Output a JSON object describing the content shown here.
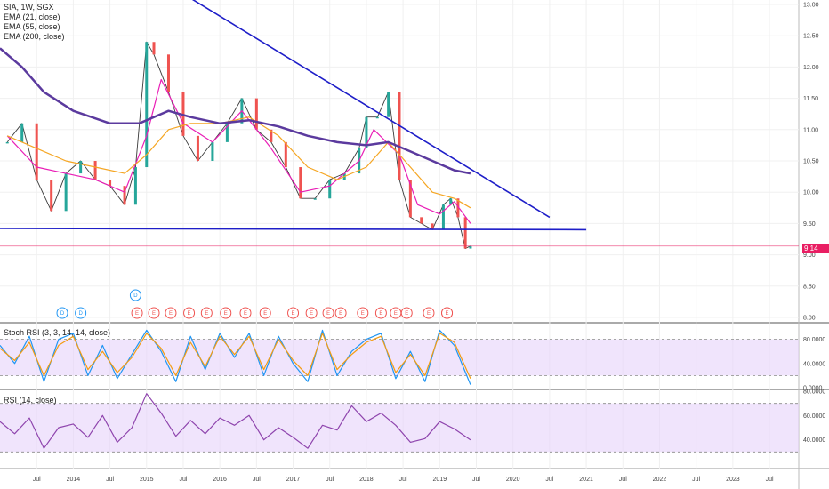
{
  "header": {
    "symbol_line": "SIA, 1W, SGX",
    "indicators": [
      "EMA (21, close)",
      "EMA (55, close)",
      "EMA (200, close)"
    ]
  },
  "last_price_label": "9.14",
  "colors": {
    "up_candle": "#26a69a",
    "down_candle": "#ef5350",
    "ema21": "#e91eb6",
    "ema55": "#f5a623",
    "ema200": "#5b3a9e",
    "trendline": "#1e1ec8",
    "stoch_k": "#2196f3",
    "stoch_d": "#f39c12",
    "rsi": "#8e44ad",
    "band": "#e6d2fa",
    "last_price_line": "#e91e63"
  },
  "chart_data": [
    {
      "type": "line",
      "title": "SIA, 1W, SGX",
      "ylim": [
        8.0,
        13.0
      ],
      "y_ticks": [
        "8.00",
        "8.50",
        "9.00",
        "9.50",
        "10.00",
        "10.50",
        "11.00",
        "11.50",
        "12.00",
        "12.50",
        "13.00"
      ],
      "x_ticks": [
        "Jul",
        "2014",
        "Jul",
        "2015",
        "Jul",
        "2016",
        "Jul",
        "2017",
        "Jul",
        "2018",
        "Jul",
        "2019",
        "Jul",
        "2020",
        "Jul",
        "2021",
        "Jul",
        "2022",
        "Jul",
        "2023",
        "Jul"
      ],
      "x_tick_dates": [
        2013.5,
        2014,
        2014.5,
        2015,
        2015.5,
        2016,
        2016.5,
        2017,
        2017.5,
        2018,
        2018.5,
        2019,
        2019.5,
        2020,
        2020.5,
        2021,
        2021.5,
        2022,
        2022.5,
        2023,
        2023.5
      ],
      "series": [
        {
          "name": "Price",
          "x": [
            2013.1,
            2013.3,
            2013.5,
            2013.7,
            2013.9,
            2014.1,
            2014.3,
            2014.5,
            2014.7,
            2014.85,
            2015.0,
            2015.1,
            2015.3,
            2015.5,
            2015.7,
            2015.9,
            2016.1,
            2016.3,
            2016.5,
            2016.7,
            2016.9,
            2017.1,
            2017.3,
            2017.5,
            2017.7,
            2017.9,
            2018.0,
            2018.15,
            2018.3,
            2018.45,
            2018.6,
            2018.75,
            2018.9,
            2019.05,
            2019.15,
            2019.25,
            2019.35,
            2019.42
          ],
          "values": [
            10.8,
            11.1,
            10.2,
            9.7,
            10.3,
            10.5,
            10.2,
            10.1,
            9.8,
            10.4,
            12.4,
            12.2,
            11.6,
            10.9,
            10.5,
            10.8,
            11.1,
            11.5,
            11.0,
            10.8,
            10.4,
            9.9,
            9.9,
            10.2,
            10.3,
            10.7,
            11.2,
            11.2,
            11.6,
            10.2,
            9.6,
            9.5,
            9.4,
            9.8,
            9.9,
            9.6,
            9.1,
            9.14
          ]
        },
        {
          "name": "EMA (21, close)",
          "x": [
            2013.1,
            2013.5,
            2013.9,
            2014.3,
            2014.7,
            2015.0,
            2015.2,
            2015.5,
            2015.9,
            2016.3,
            2016.7,
            2017.1,
            2017.5,
            2017.9,
            2018.1,
            2018.45,
            2018.7,
            2019.0,
            2019.2,
            2019.42
          ],
          "values": [
            10.9,
            10.4,
            10.3,
            10.2,
            10.0,
            10.9,
            11.8,
            11.1,
            10.8,
            11.3,
            10.7,
            10.0,
            10.1,
            10.5,
            11.0,
            10.6,
            9.8,
            9.65,
            9.85,
            9.5
          ]
        },
        {
          "name": "EMA (55, close)",
          "x": [
            2013.1,
            2013.5,
            2013.9,
            2014.3,
            2014.7,
            2015.0,
            2015.3,
            2015.6,
            2016.0,
            2016.4,
            2016.8,
            2017.2,
            2017.6,
            2018.0,
            2018.3,
            2018.6,
            2018.9,
            2019.2,
            2019.42
          ],
          "values": [
            10.9,
            10.7,
            10.5,
            10.4,
            10.3,
            10.6,
            11.0,
            11.1,
            11.1,
            11.2,
            10.9,
            10.4,
            10.2,
            10.4,
            10.8,
            10.4,
            10.0,
            9.9,
            9.75
          ]
        },
        {
          "name": "EMA (200, close)",
          "x": [
            2013.0,
            2013.3,
            2013.6,
            2014.0,
            2014.5,
            2014.9,
            2015.3,
            2015.6,
            2016.0,
            2016.4,
            2016.8,
            2017.2,
            2017.6,
            2018.0,
            2018.3,
            2018.6,
            2018.9,
            2019.2,
            2019.42
          ],
          "values": [
            12.3,
            12.0,
            11.6,
            11.3,
            11.1,
            11.1,
            11.3,
            11.2,
            11.1,
            11.15,
            11.05,
            10.9,
            10.8,
            10.75,
            10.8,
            10.65,
            10.5,
            10.35,
            10.3
          ]
        },
        {
          "name": "Descending trendline",
          "x": [
            2015.6,
            2020.5
          ],
          "values": [
            13.1,
            9.6
          ]
        },
        {
          "name": "Support line",
          "x": [
            2013.0,
            2021.0
          ],
          "values": [
            9.42,
            9.4
          ]
        }
      ],
      "markers": {
        "labels": [
          "D",
          "D",
          "D",
          "E",
          "E",
          "E",
          "E",
          "E",
          "E",
          "E",
          "E",
          "E",
          "E",
          "E",
          "E",
          "E",
          "E",
          "E",
          "E",
          "E",
          "E",
          "E"
        ],
        "x": [
          2013.85,
          2014.1,
          2014.85,
          2014.87,
          2015.1,
          2015.33,
          2015.58,
          2015.82,
          2016.08,
          2016.35,
          2016.62,
          2017.0,
          2017.25,
          2017.48,
          2017.65,
          2017.95,
          2018.2,
          2018.4,
          2018.55,
          2018.85,
          2019.1,
          2019.1
        ],
        "rows": [
          1,
          1,
          0,
          1,
          1,
          1,
          1,
          1,
          1,
          1,
          1,
          1,
          1,
          1,
          1,
          1,
          1,
          1,
          1,
          1,
          1,
          1
        ]
      }
    },
    {
      "type": "line",
      "title": "Stoch RSI (3, 3, 14, 14, close)",
      "ylim": [
        0,
        100
      ],
      "y_ticks": [
        "0.0000",
        "40.0000",
        "80.0000"
      ],
      "band": [
        20,
        80
      ],
      "series": [
        {
          "name": "K",
          "x": [
            2013.0,
            2013.2,
            2013.4,
            2013.6,
            2013.8,
            2014.0,
            2014.2,
            2014.4,
            2014.6,
            2014.8,
            2015.0,
            2015.2,
            2015.4,
            2015.6,
            2015.8,
            2016.0,
            2016.2,
            2016.4,
            2016.6,
            2016.8,
            2017.0,
            2017.2,
            2017.4,
            2017.6,
            2017.8,
            2018.0,
            2018.2,
            2018.4,
            2018.6,
            2018.8,
            2019.0,
            2019.2,
            2019.42
          ],
          "values": [
            70,
            40,
            85,
            10,
            80,
            90,
            20,
            70,
            15,
            55,
            95,
            60,
            10,
            85,
            30,
            90,
            50,
            90,
            20,
            85,
            40,
            10,
            95,
            20,
            60,
            80,
            90,
            15,
            60,
            10,
            95,
            70,
            5
          ]
        },
        {
          "name": "D",
          "x": [
            2013.0,
            2013.2,
            2013.4,
            2013.6,
            2013.8,
            2014.0,
            2014.2,
            2014.4,
            2014.6,
            2014.8,
            2015.0,
            2015.2,
            2015.4,
            2015.6,
            2015.8,
            2016.0,
            2016.2,
            2016.4,
            2016.6,
            2016.8,
            2017.0,
            2017.2,
            2017.4,
            2017.6,
            2017.8,
            2018.0,
            2018.2,
            2018.4,
            2018.6,
            2018.8,
            2019.0,
            2019.2,
            2019.42
          ],
          "values": [
            65,
            45,
            75,
            20,
            70,
            85,
            30,
            60,
            25,
            50,
            90,
            65,
            20,
            75,
            35,
            85,
            55,
            85,
            30,
            80,
            45,
            20,
            90,
            30,
            55,
            75,
            85,
            25,
            55,
            20,
            90,
            75,
            15
          ]
        }
      ]
    },
    {
      "type": "line",
      "title": "RSI (14, close)",
      "ylim": [
        20,
        80
      ],
      "y_ticks": [
        "40.0000",
        "60.0000",
        "80.0000"
      ],
      "band": [
        30,
        70
      ],
      "series": [
        {
          "name": "RSI (14, close)",
          "x": [
            2013.0,
            2013.2,
            2013.4,
            2013.6,
            2013.8,
            2014.0,
            2014.2,
            2014.4,
            2014.6,
            2014.8,
            2015.0,
            2015.2,
            2015.4,
            2015.6,
            2015.8,
            2016.0,
            2016.2,
            2016.4,
            2016.6,
            2016.8,
            2017.0,
            2017.2,
            2017.4,
            2017.6,
            2017.8,
            2018.0,
            2018.2,
            2018.4,
            2018.6,
            2018.8,
            2019.0,
            2019.2,
            2019.42
          ],
          "values": [
            55,
            45,
            58,
            33,
            50,
            53,
            42,
            60,
            38,
            50,
            78,
            62,
            43,
            56,
            45,
            58,
            52,
            60,
            40,
            50,
            42,
            33,
            52,
            48,
            68,
            55,
            62,
            52,
            38,
            41,
            55,
            49,
            40
          ]
        }
      ]
    }
  ]
}
